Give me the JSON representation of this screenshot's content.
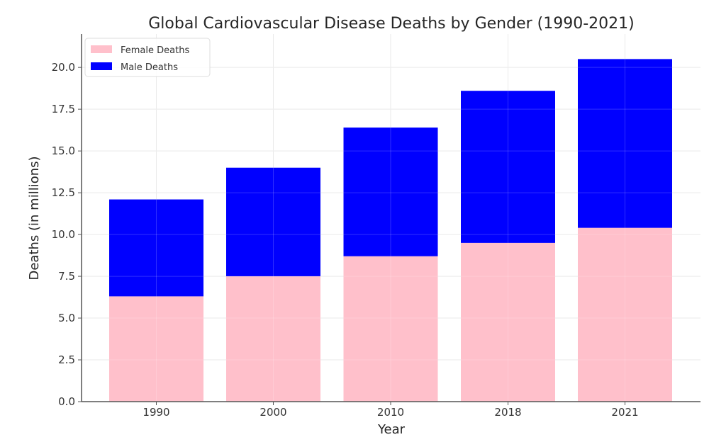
{
  "chart_data": {
    "type": "bar",
    "stacked": true,
    "title": "Global Cardiovascular Disease Deaths by Gender (1990-2021)",
    "xlabel": "Year",
    "ylabel": "Deaths (in millions)",
    "categories": [
      "1990",
      "2000",
      "2010",
      "2018",
      "2021"
    ],
    "series": [
      {
        "name": "Female Deaths",
        "color": "#ffc0cb",
        "values": [
          6.3,
          7.5,
          8.7,
          9.5,
          10.4
        ]
      },
      {
        "name": "Male Deaths",
        "color": "#0000ff",
        "values": [
          5.8,
          6.5,
          7.7,
          9.1,
          10.1
        ]
      }
    ],
    "ylim": [
      0,
      22
    ],
    "yticks": [
      0.0,
      2.5,
      5.0,
      7.5,
      10.0,
      12.5,
      15.0,
      17.5,
      20.0
    ],
    "ytick_labels": [
      "0.0",
      "2.5",
      "5.0",
      "7.5",
      "10.0",
      "12.5",
      "15.0",
      "17.5",
      "20.0"
    ],
    "grid": true,
    "legend_position": "top-left"
  }
}
